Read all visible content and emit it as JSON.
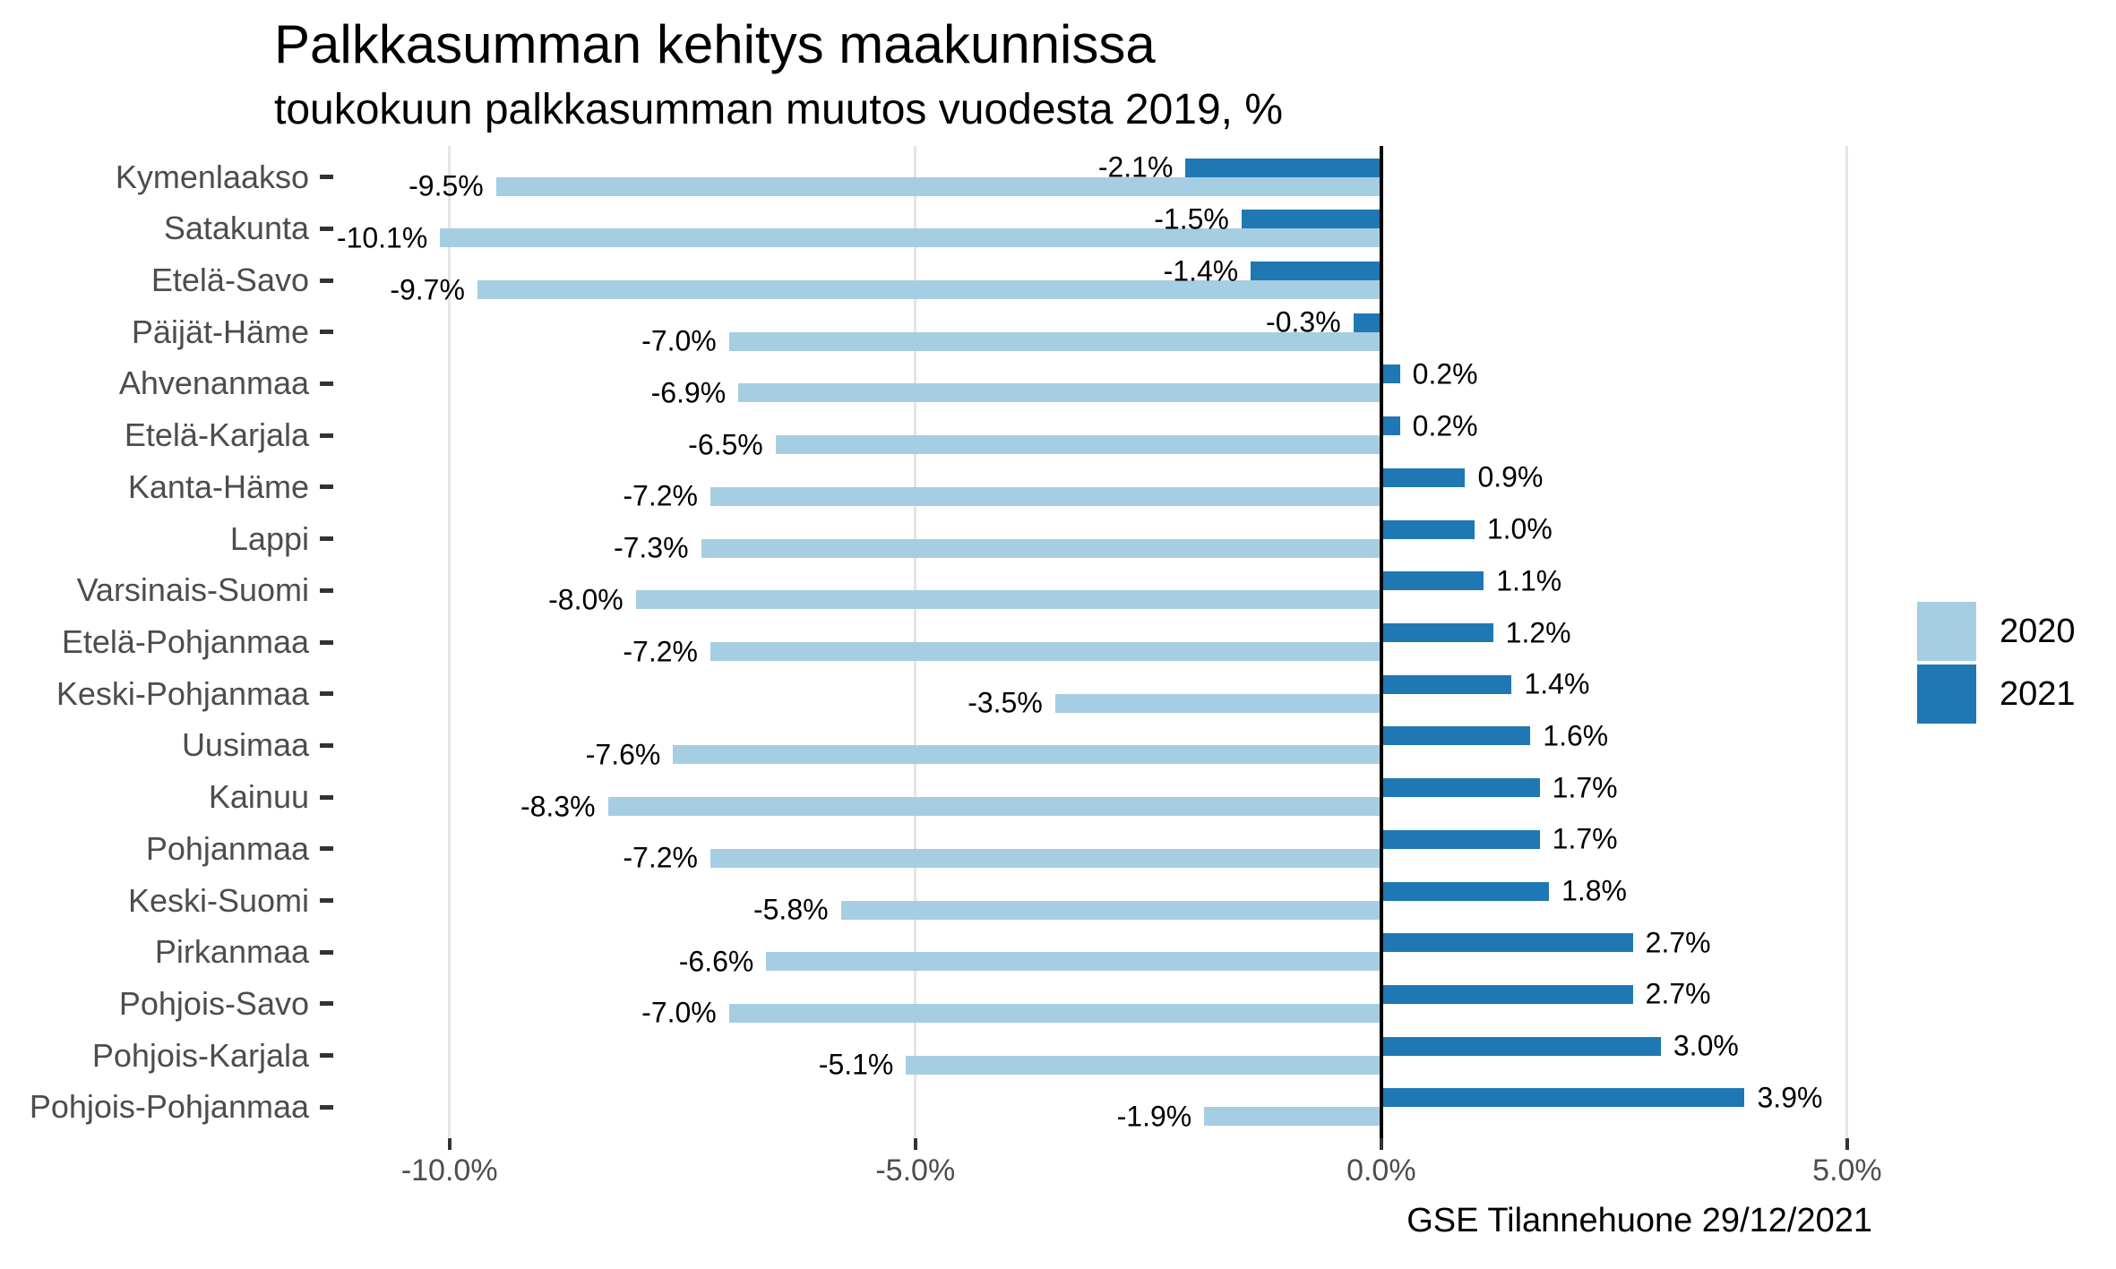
{
  "chart_data": {
    "type": "bar",
    "orientation": "horizontal",
    "title": "Palkkasumman kehitys maakunnissa",
    "subtitle": "toukokuun palkkasumman muutos vuodesta 2019, %",
    "caption": "GSE Tilannehuone 29/12/2021",
    "categories": [
      "Kymenlaakso",
      "Satakunta",
      "Etelä-Savo",
      "Päijät-Häme",
      "Ahvenanmaa",
      "Etelä-Karjala",
      "Kanta-Häme",
      "Lappi",
      "Varsinais-Suomi",
      "Etelä-Pohjanmaa",
      "Keski-Pohjanmaa",
      "Uusimaa",
      "Kainuu",
      "Pohjanmaa",
      "Keski-Suomi",
      "Pirkanmaa",
      "Pohjois-Savo",
      "Pohjois-Karjala",
      "Pohjois-Pohjanmaa"
    ],
    "series": [
      {
        "name": "2020",
        "color": "#A6CEE3",
        "values": [
          -9.5,
          -10.1,
          -9.7,
          -7.0,
          -6.9,
          -6.5,
          -7.2,
          -7.3,
          -8.0,
          -7.2,
          -3.5,
          -7.6,
          -8.3,
          -7.2,
          -5.8,
          -6.6,
          -7.0,
          -5.1,
          -1.9
        ],
        "labels": [
          "-9.5%",
          "-10.1%",
          "-9.7%",
          "-7.0%",
          "-6.9%",
          "-6.5%",
          "-7.2%",
          "-7.3%",
          "-8.0%",
          "-7.2%",
          "-3.5%",
          "-7.6%",
          "-8.3%",
          "-7.2%",
          "-5.8%",
          "-6.6%",
          "-7.0%",
          "-5.1%",
          "-1.9%"
        ]
      },
      {
        "name": "2021",
        "color": "#1F78B4",
        "values": [
          -2.1,
          -1.5,
          -1.4,
          -0.3,
          0.2,
          0.2,
          0.9,
          1.0,
          1.1,
          1.2,
          1.4,
          1.6,
          1.7,
          1.7,
          1.8,
          2.7,
          2.7,
          3.0,
          3.9
        ],
        "labels": [
          "-2.1%",
          "-1.5%",
          "-1.4%",
          "-0.3%",
          "0.2%",
          "0.2%",
          "0.9%",
          "1.0%",
          "1.1%",
          "1.2%",
          "1.4%",
          "1.6%",
          "1.7%",
          "1.7%",
          "1.8%",
          "2.7%",
          "2.7%",
          "3.0%",
          "3.9%"
        ]
      }
    ],
    "x_axis": {
      "range": [
        -11.17,
        5.27
      ],
      "ticks": [
        {
          "value": -10,
          "label": "-10.0%"
        },
        {
          "value": -5,
          "label": "-5.0%"
        },
        {
          "value": 0,
          "label": "0.0%"
        },
        {
          "value": 5,
          "label": "5.0%"
        }
      ],
      "gridlines": [
        -10,
        -5,
        5
      ],
      "zero_line": 0
    },
    "legend": {
      "position": "right",
      "items": [
        {
          "label": "2020",
          "color": "#A6CEE3"
        },
        {
          "label": "2021",
          "color": "#1F78B4"
        }
      ]
    },
    "grid": "vertical-major-only",
    "background": "#ffffff"
  }
}
